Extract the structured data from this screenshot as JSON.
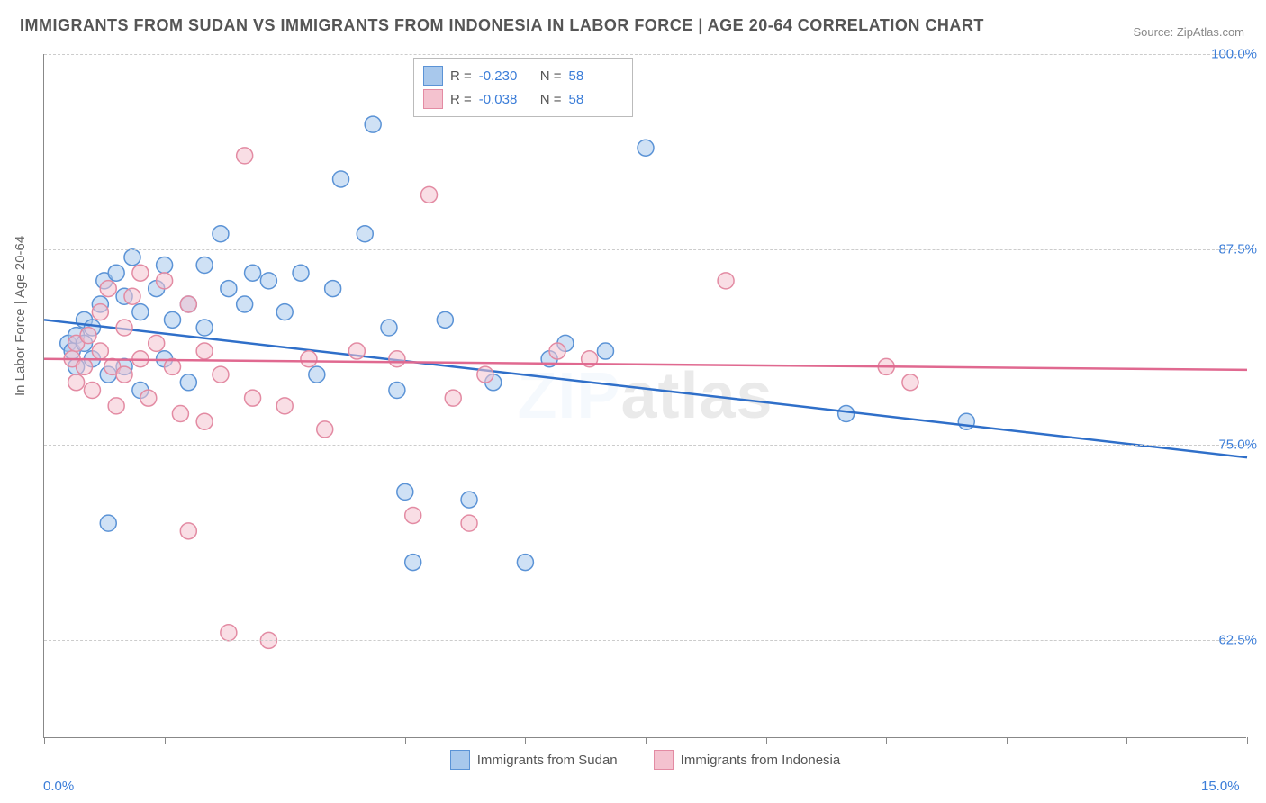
{
  "title": "IMMIGRANTS FROM SUDAN VS IMMIGRANTS FROM INDONESIA IN LABOR FORCE | AGE 20-64 CORRELATION CHART",
  "source": "Source: ZipAtlas.com",
  "ylabel": "In Labor Force | Age 20-64",
  "watermark_a": "ZIP",
  "watermark_b": "atlas",
  "chart": {
    "type": "scatter-with-regression",
    "xlim": [
      0,
      15
    ],
    "ylim": [
      56.25,
      100
    ],
    "yticks": [
      62.5,
      75.0,
      87.5,
      100.0
    ],
    "ytick_labels": [
      "62.5%",
      "75.0%",
      "87.5%",
      "100.0%"
    ],
    "xtick_positions": [
      0,
      1.5,
      3.0,
      4.5,
      6.0,
      7.5,
      9.0,
      10.5,
      12.0,
      13.5,
      15.0
    ],
    "xtick_labels_shown": {
      "0": "0.0%",
      "15": "15.0%"
    },
    "grid_color": "#cccccc",
    "background_color": "#ffffff",
    "marker_radius": 9,
    "marker_opacity": 0.55,
    "line_width": 2.5,
    "series": [
      {
        "name": "Immigrants from Sudan",
        "color_fill": "#a8c8ec",
        "color_stroke": "#5b93d6",
        "line_color": "#2f6fc9",
        "R": "-0.230",
        "N": "58",
        "reg_y_at_x0": 83.0,
        "reg_y_at_xmax": 74.2,
        "points": [
          [
            0.3,
            81.5
          ],
          [
            0.4,
            80.0
          ],
          [
            0.4,
            82.0
          ],
          [
            0.35,
            81.0
          ],
          [
            0.5,
            81.5
          ],
          [
            0.5,
            83.0
          ],
          [
            0.6,
            80.5
          ],
          [
            0.6,
            82.5
          ],
          [
            0.7,
            84.0
          ],
          [
            0.75,
            85.5
          ],
          [
            0.8,
            79.5
          ],
          [
            0.8,
            70.0
          ],
          [
            0.9,
            86.0
          ],
          [
            1.0,
            84.5
          ],
          [
            1.0,
            80.0
          ],
          [
            1.1,
            87.0
          ],
          [
            1.2,
            83.5
          ],
          [
            1.2,
            78.5
          ],
          [
            1.4,
            85.0
          ],
          [
            1.5,
            86.5
          ],
          [
            1.5,
            80.5
          ],
          [
            1.6,
            83.0
          ],
          [
            1.8,
            84.0
          ],
          [
            1.8,
            79.0
          ],
          [
            2.0,
            86.5
          ],
          [
            2.0,
            82.5
          ],
          [
            2.2,
            88.5
          ],
          [
            2.3,
            85.0
          ],
          [
            2.5,
            84.0
          ],
          [
            2.6,
            86.0
          ],
          [
            2.8,
            85.5
          ],
          [
            3.0,
            83.5
          ],
          [
            3.2,
            86.0
          ],
          [
            3.4,
            79.5
          ],
          [
            3.6,
            85.0
          ],
          [
            3.7,
            92.0
          ],
          [
            4.0,
            88.5
          ],
          [
            4.1,
            95.5
          ],
          [
            4.3,
            82.5
          ],
          [
            4.4,
            78.5
          ],
          [
            4.5,
            72.0
          ],
          [
            4.6,
            67.5
          ],
          [
            5.0,
            83.0
          ],
          [
            5.3,
            71.5
          ],
          [
            5.6,
            79.0
          ],
          [
            6.0,
            67.5
          ],
          [
            6.3,
            80.5
          ],
          [
            6.5,
            81.5
          ],
          [
            7.0,
            81.0
          ],
          [
            7.5,
            94.0
          ],
          [
            10.0,
            77.0
          ],
          [
            11.5,
            76.5
          ]
        ]
      },
      {
        "name": "Immigrants from Indonesia",
        "color_fill": "#f4c2cf",
        "color_stroke": "#e38ba3",
        "line_color": "#e06990",
        "R": "-0.038",
        "N": "58",
        "reg_y_at_x0": 80.5,
        "reg_y_at_xmax": 79.8,
        "points": [
          [
            0.35,
            80.5
          ],
          [
            0.4,
            81.5
          ],
          [
            0.4,
            79.0
          ],
          [
            0.5,
            80.0
          ],
          [
            0.55,
            82.0
          ],
          [
            0.6,
            78.5
          ],
          [
            0.7,
            81.0
          ],
          [
            0.7,
            83.5
          ],
          [
            0.8,
            85.0
          ],
          [
            0.85,
            80.0
          ],
          [
            0.9,
            77.5
          ],
          [
            1.0,
            82.5
          ],
          [
            1.0,
            79.5
          ],
          [
            1.1,
            84.5
          ],
          [
            1.2,
            86.0
          ],
          [
            1.2,
            80.5
          ],
          [
            1.3,
            78.0
          ],
          [
            1.4,
            81.5
          ],
          [
            1.5,
            85.5
          ],
          [
            1.6,
            80.0
          ],
          [
            1.7,
            77.0
          ],
          [
            1.8,
            84.0
          ],
          [
            1.8,
            69.5
          ],
          [
            2.0,
            81.0
          ],
          [
            2.0,
            76.5
          ],
          [
            2.2,
            79.5
          ],
          [
            2.3,
            63.0
          ],
          [
            2.5,
            93.5
          ],
          [
            2.6,
            78.0
          ],
          [
            2.8,
            62.5
          ],
          [
            3.0,
            77.5
          ],
          [
            3.3,
            80.5
          ],
          [
            3.5,
            76.0
          ],
          [
            3.9,
            81.0
          ],
          [
            4.4,
            80.5
          ],
          [
            4.6,
            70.5
          ],
          [
            4.8,
            91.0
          ],
          [
            5.1,
            78.0
          ],
          [
            5.3,
            70.0
          ],
          [
            5.5,
            79.5
          ],
          [
            6.4,
            81.0
          ],
          [
            6.8,
            80.5
          ],
          [
            8.5,
            85.5
          ],
          [
            10.5,
            80.0
          ],
          [
            10.8,
            79.0
          ]
        ]
      }
    ]
  },
  "legend_top": {
    "r_label": "R =",
    "n_label": "N ="
  },
  "legend_bottom": [
    {
      "swatch_fill": "#a8c8ec",
      "swatch_stroke": "#5b93d6",
      "label": "Immigrants from Sudan"
    },
    {
      "swatch_fill": "#f4c2cf",
      "swatch_stroke": "#e38ba3",
      "label": "Immigrants from Indonesia"
    }
  ]
}
